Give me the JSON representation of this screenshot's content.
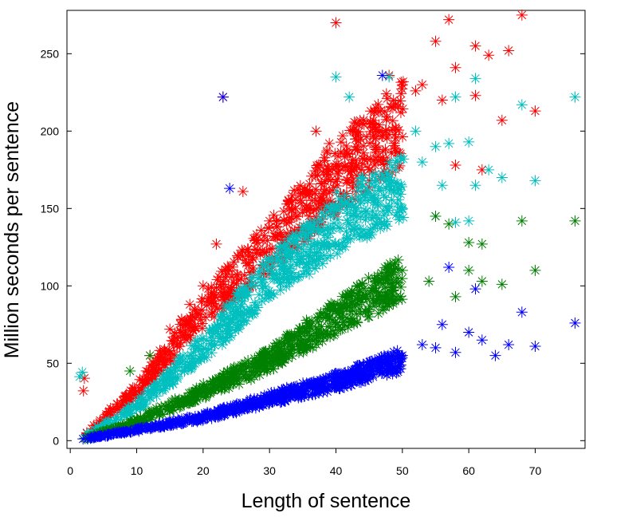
{
  "chart_data": {
    "type": "scatter",
    "title": "",
    "xlabel": "Length of sentence",
    "ylabel": "Million seconds per sentence",
    "xlim": [
      -0.5,
      77.5
    ],
    "ylim": [
      -5,
      278
    ],
    "x_ticks": [
      0,
      10,
      20,
      30,
      40,
      50,
      60,
      70
    ],
    "y_ticks": [
      0,
      50,
      100,
      150,
      200,
      250
    ],
    "x_tick_labels": [
      "0",
      "10",
      "20",
      "30",
      "40",
      "50",
      "60",
      "70"
    ],
    "y_tick_labels": [
      "0",
      "50",
      "100",
      "150",
      "200",
      "250"
    ],
    "grid": false,
    "legend": "none",
    "marker": "asterisk",
    "series": [
      {
        "color": "#ff0000",
        "trend": [
          [
            2,
            3
          ],
          [
            10,
            32
          ],
          [
            20,
            85
          ],
          [
            30,
            125
          ],
          [
            40,
            170
          ],
          [
            50,
            205
          ]
        ],
        "points": [
          [
            40,
            270
          ],
          [
            55,
            258
          ],
          [
            57,
            272
          ],
          [
            61,
            255
          ],
          [
            63,
            249
          ],
          [
            68,
            275
          ],
          [
            66,
            252
          ],
          [
            48,
            236
          ],
          [
            58,
            241
          ],
          [
            53,
            230
          ],
          [
            61,
            223
          ],
          [
            65,
            207
          ],
          [
            70,
            213
          ],
          [
            23,
            222
          ],
          [
            26,
            161
          ],
          [
            37,
            200
          ],
          [
            39,
            192
          ],
          [
            22,
            127
          ],
          [
            20,
            100
          ],
          [
            12,
            55
          ],
          [
            44,
            205
          ],
          [
            46,
            215
          ],
          [
            50,
            230
          ],
          [
            52,
            226
          ],
          [
            56,
            220
          ],
          [
            58,
            178
          ],
          [
            62,
            175
          ],
          [
            33,
            150
          ],
          [
            35,
            160
          ],
          [
            30,
            142
          ],
          [
            42,
            185
          ],
          [
            28,
            130
          ],
          [
            24,
            110
          ],
          [
            18,
            88
          ],
          [
            15,
            72
          ]
        ]
      },
      {
        "color": "#00bfbf",
        "trend": [
          [
            2,
            2
          ],
          [
            10,
            22
          ],
          [
            20,
            60
          ],
          [
            30,
            105
          ],
          [
            40,
            140
          ],
          [
            50,
            165
          ]
        ],
        "points": [
          [
            40,
            235
          ],
          [
            42,
            222
          ],
          [
            48,
            235
          ],
          [
            58,
            222
          ],
          [
            61,
            234
          ],
          [
            68,
            217
          ],
          [
            76,
            222
          ],
          [
            52,
            200
          ],
          [
            55,
            190
          ],
          [
            57,
            192
          ],
          [
            60,
            193
          ],
          [
            63,
            175
          ],
          [
            65,
            170
          ],
          [
            70,
            168
          ],
          [
            61,
            165
          ],
          [
            56,
            165
          ],
          [
            50,
            150
          ],
          [
            55,
            145
          ],
          [
            58,
            141
          ],
          [
            60,
            142
          ],
          [
            53,
            180
          ],
          [
            49,
            175
          ],
          [
            45,
            160
          ],
          [
            36,
            120
          ],
          [
            32,
            110
          ],
          [
            26,
            90
          ],
          [
            20,
            66
          ]
        ]
      },
      {
        "color": "#008000",
        "trend": [
          [
            2,
            1
          ],
          [
            10,
            12
          ],
          [
            20,
            32
          ],
          [
            30,
            52
          ],
          [
            40,
            80
          ],
          [
            50,
            105
          ]
        ],
        "points": [
          [
            9,
            45
          ],
          [
            12,
            55
          ],
          [
            55,
            145
          ],
          [
            57,
            140
          ],
          [
            60,
            128
          ],
          [
            62,
            127
          ],
          [
            68,
            142
          ],
          [
            76,
            142
          ],
          [
            60,
            110
          ],
          [
            62,
            103
          ],
          [
            65,
            101
          ],
          [
            70,
            110
          ],
          [
            58,
            93
          ],
          [
            54,
            103
          ],
          [
            50,
            110
          ],
          [
            48,
            90
          ],
          [
            45,
            80
          ],
          [
            40,
            75
          ],
          [
            35,
            60
          ],
          [
            30,
            50
          ],
          [
            25,
            40
          ],
          [
            20,
            32
          ]
        ]
      },
      {
        "color": "#0000ff",
        "trend": [
          [
            2,
            1
          ],
          [
            10,
            7
          ],
          [
            20,
            15
          ],
          [
            30,
            27
          ],
          [
            40,
            38
          ],
          [
            50,
            52
          ]
        ],
        "points": [
          [
            23,
            222
          ],
          [
            24,
            163
          ],
          [
            47,
            236
          ],
          [
            58,
            57
          ],
          [
            60,
            70
          ],
          [
            62,
            65
          ],
          [
            64,
            55
          ],
          [
            66,
            62
          ],
          [
            68,
            83
          ],
          [
            70,
            61
          ],
          [
            76,
            76
          ],
          [
            57,
            112
          ],
          [
            61,
            98
          ],
          [
            56,
            75
          ],
          [
            53,
            62
          ],
          [
            55,
            60
          ],
          [
            50,
            55
          ],
          [
            45,
            42
          ],
          [
            40,
            38
          ],
          [
            35,
            30
          ],
          [
            30,
            25
          ],
          [
            25,
            18
          ],
          [
            20,
            14
          ]
        ]
      }
    ]
  }
}
